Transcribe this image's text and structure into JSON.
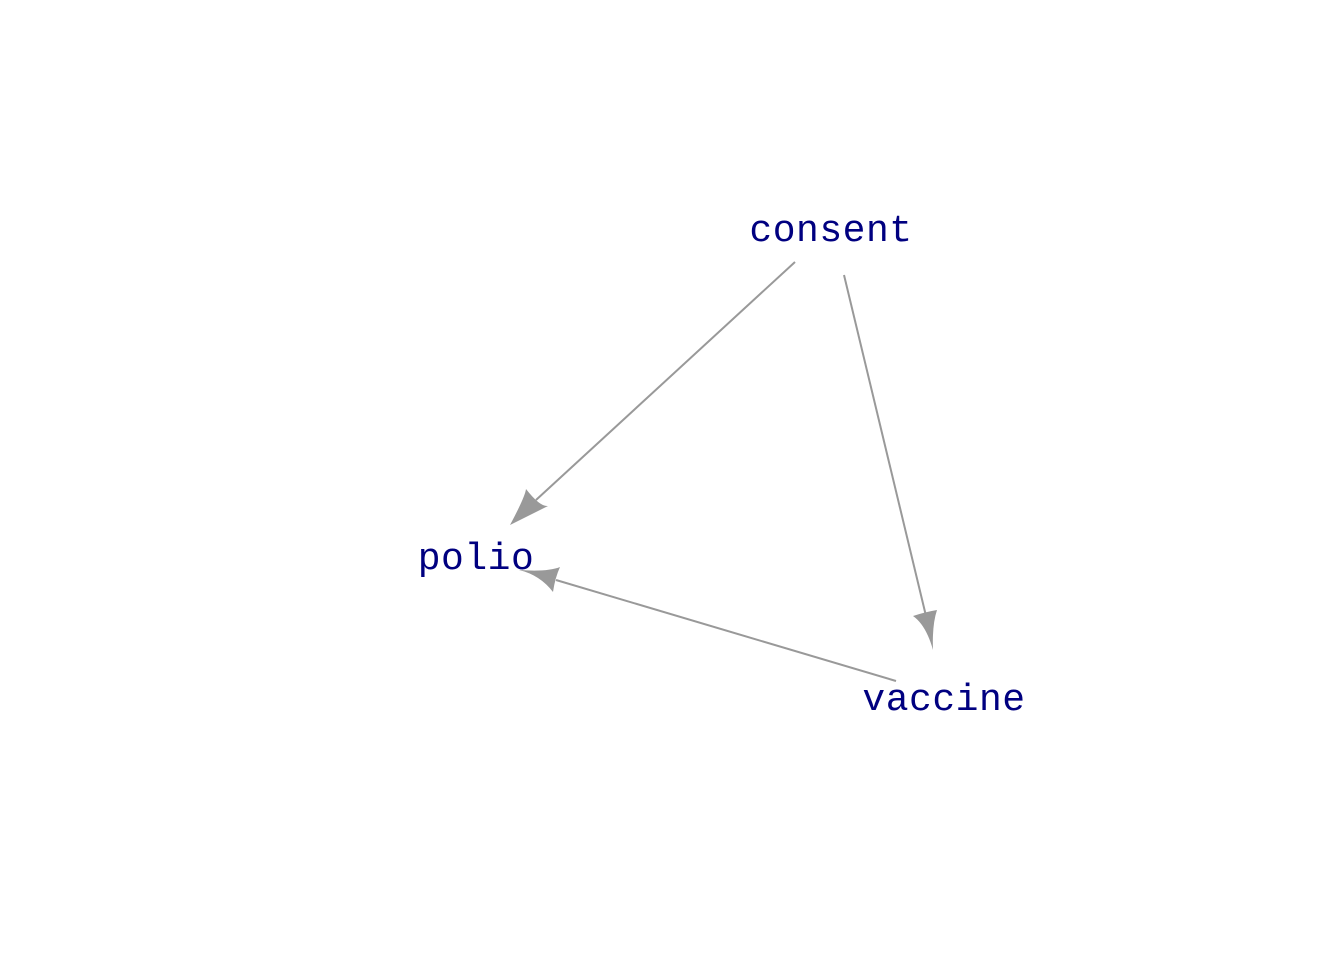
{
  "colors": {
    "node_text": "#000080",
    "edge": "#999999",
    "background": "#ffffff"
  },
  "nodes": [
    {
      "id": "consent",
      "label": "consent"
    },
    {
      "id": "polio",
      "label": "polio"
    },
    {
      "id": "vaccine",
      "label": "vaccine"
    }
  ],
  "edges": [
    {
      "from": "consent",
      "to": "polio"
    },
    {
      "from": "consent",
      "to": "vaccine"
    },
    {
      "from": "vaccine",
      "to": "polio"
    }
  ]
}
